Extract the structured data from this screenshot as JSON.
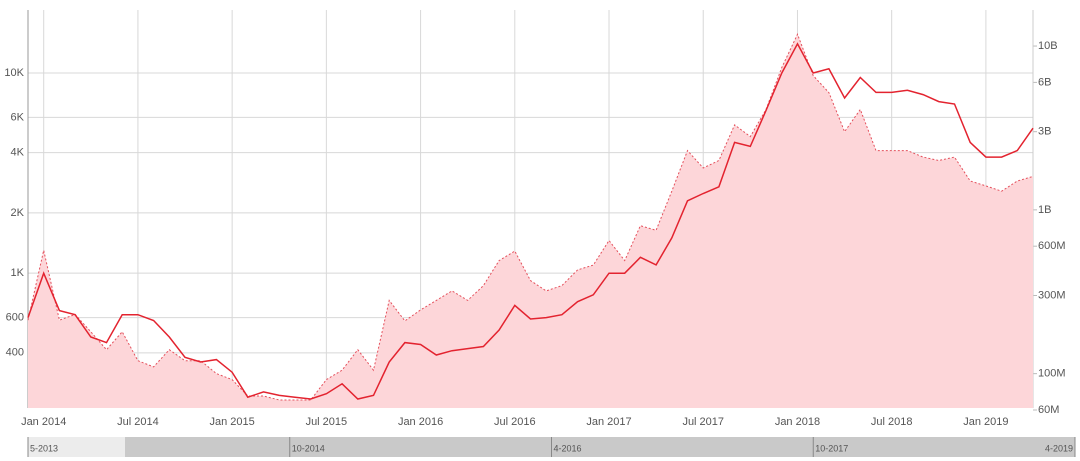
{
  "chart_data": {
    "type": "line",
    "log_scale": true,
    "grid": true,
    "x": [
      "2013-12",
      "2014-01",
      "2014-02",
      "2014-03",
      "2014-04",
      "2014-05",
      "2014-06",
      "2014-07",
      "2014-08",
      "2014-09",
      "2014-10",
      "2014-11",
      "2014-12",
      "2015-01",
      "2015-02",
      "2015-03",
      "2015-04",
      "2015-05",
      "2015-06",
      "2015-07",
      "2015-08",
      "2015-09",
      "2015-10",
      "2015-11",
      "2015-12",
      "2016-01",
      "2016-02",
      "2016-03",
      "2016-04",
      "2016-05",
      "2016-06",
      "2016-07",
      "2016-08",
      "2016-09",
      "2016-10",
      "2016-11",
      "2016-12",
      "2017-01",
      "2017-02",
      "2017-03",
      "2017-04",
      "2017-05",
      "2017-06",
      "2017-07",
      "2017-08",
      "2017-09",
      "2017-10",
      "2017-11",
      "2017-12",
      "2018-01",
      "2018-02",
      "2018-03",
      "2018-04",
      "2018-05",
      "2018-06",
      "2018-07",
      "2018-08",
      "2018-09",
      "2018-10",
      "2018-11",
      "2018-12",
      "2019-01",
      "2019-02",
      "2019-03",
      "2019-04"
    ],
    "xlim": [
      "2013-12",
      "2019-04"
    ],
    "xticks": [
      {
        "value": "2014-01",
        "label": "Jan 2014"
      },
      {
        "value": "2014-07",
        "label": "Jul 2014"
      },
      {
        "value": "2015-01",
        "label": "Jan 2015"
      },
      {
        "value": "2015-07",
        "label": "Jul 2015"
      },
      {
        "value": "2016-01",
        "label": "Jan 2016"
      },
      {
        "value": "2016-07",
        "label": "Jul 2016"
      },
      {
        "value": "2017-01",
        "label": "Jan 2017"
      },
      {
        "value": "2017-07",
        "label": "Jul 2017"
      },
      {
        "value": "2018-01",
        "label": "Jan 2018"
      },
      {
        "value": "2018-07",
        "label": "Jul 2018"
      },
      {
        "value": "2019-01",
        "label": "Jan 2019"
      }
    ],
    "ylim": [
      212,
      20650
    ],
    "yticks": [
      400,
      600,
      {
        "value": 1000,
        "label": "1K"
      },
      {
        "value": 2000,
        "label": "2K"
      },
      {
        "value": 4000,
        "label": "4K"
      },
      {
        "value": 6000,
        "label": "6K"
      },
      {
        "value": 10000,
        "label": "10K"
      }
    ],
    "y2lim": [
      61700000,
      16600000000
    ],
    "y2ticks": [
      {
        "value": 60000000,
        "label": "60M"
      },
      {
        "value": 100000000,
        "label": "100M"
      },
      {
        "value": 300000000,
        "label": "300M"
      },
      {
        "value": 600000000,
        "label": "600M"
      },
      {
        "value": 1000000000,
        "label": "1B"
      },
      {
        "value": 3000000000,
        "label": "3B"
      },
      {
        "value": 6000000000,
        "label": "6B"
      },
      {
        "value": 10000000000,
        "label": "10B"
      }
    ],
    "series": [
      {
        "kind": "area",
        "axis": "y2",
        "color": "#e4505c",
        "fill": "#fdd6d9",
        "values": [
          212000000,
          566000000,
          212000000,
          230000000,
          180000000,
          140000000,
          180000000,
          120000000,
          110000000,
          140000000,
          120000000,
          120000000,
          100000000,
          92000000,
          73000000,
          73000000,
          69000000,
          69000000,
          69000000,
          92000000,
          105000000,
          140000000,
          105000000,
          280000000,
          210000000,
          245000000,
          280000000,
          320000000,
          280000000,
          345000000,
          490000000,
          560000000,
          370000000,
          320000000,
          345000000,
          430000000,
          460000000,
          650000000,
          490000000,
          800000000,
          750000000,
          1300000000,
          2300000000,
          1800000000,
          2000000000,
          3300000000,
          2800000000,
          4100000000,
          7400000000,
          11800000000,
          6600000000,
          5200000000,
          3000000000,
          4100000000,
          2300000000,
          2300000000,
          2300000000,
          2100000000,
          2000000000,
          2100000000,
          1500000000,
          1400000000,
          1300000000,
          1500000000,
          1600000000
        ]
      },
      {
        "kind": "line",
        "axis": "y",
        "color": "#e3232f",
        "values": [
          600,
          1000,
          650,
          620,
          480,
          450,
          620,
          620,
          580,
          480,
          380,
          360,
          370,
          320,
          240,
          255,
          245,
          240,
          235,
          250,
          280,
          235,
          245,
          360,
          450,
          440,
          390,
          410,
          420,
          430,
          520,
          690,
          590,
          600,
          620,
          720,
          780,
          1000,
          1000,
          1200,
          1100,
          1500,
          2300,
          2500,
          2700,
          4500,
          4300,
          6500,
          10000,
          14000,
          10000,
          10500,
          7500,
          9500,
          8000,
          8000,
          8200,
          7800,
          7200,
          7000,
          4500,
          3800,
          3800,
          4100,
          5300
        ]
      }
    ],
    "navigator": {
      "labels": [
        "5-2013",
        "10-2014",
        "4-2016",
        "10-2017",
        "4-2019"
      ]
    }
  }
}
